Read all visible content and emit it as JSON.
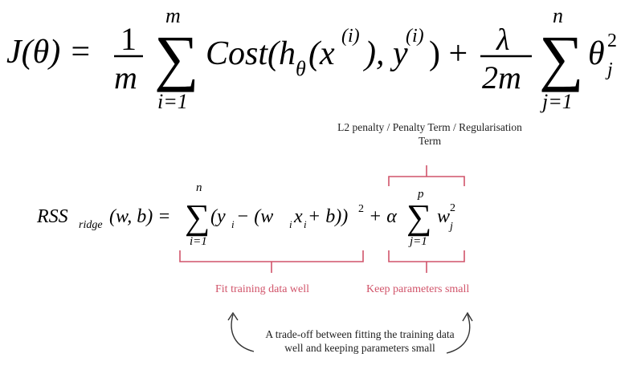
{
  "equation1": {
    "lhs": "J(θ) =",
    "frac1_num": "1",
    "frac1_den": "m",
    "sum1_top": "m",
    "sum1_bot": "i=1",
    "cost": "Cost(h",
    "cost_sub": "θ",
    "x_part": "(x",
    "x_sup": "(i)",
    "y_part": "), y",
    "y_sup": "(i)",
    "close_plus": ") +",
    "frac2_num": "λ",
    "frac2_den": "2m",
    "sum2_top": "n",
    "sum2_bot": "j=1",
    "theta": "θ",
    "theta_sup": "2",
    "theta_sub": "j"
  },
  "equation2": {
    "rss": "RSS",
    "rss_sub": "ridge",
    "args": "(w, b) =",
    "sum1_top": "n",
    "sum1_bot": "i=1",
    "term1": "(y",
    "term1_sub": "i",
    "term2": " − (w",
    "term2_sub": "i",
    "term3": "x",
    "term3_sub": "i",
    "term4": " + b))",
    "term4_sup": "2",
    "plus_alpha": "+ α",
    "sum2_top": "p",
    "sum2_bot": "j=1",
    "w": "w",
    "w_sup": "2",
    "w_sub": "j"
  },
  "annotations": {
    "penalty_label": "L2 penalty / Penalty Term / Regularisation Term",
    "fit_label": "Fit training data well",
    "keep_label": "Keep parameters small",
    "tradeoff_text": "A trade-off between fitting the training data well and keeping parameters small"
  },
  "colors": {
    "accent": "#d1546a",
    "text": "#000000"
  }
}
